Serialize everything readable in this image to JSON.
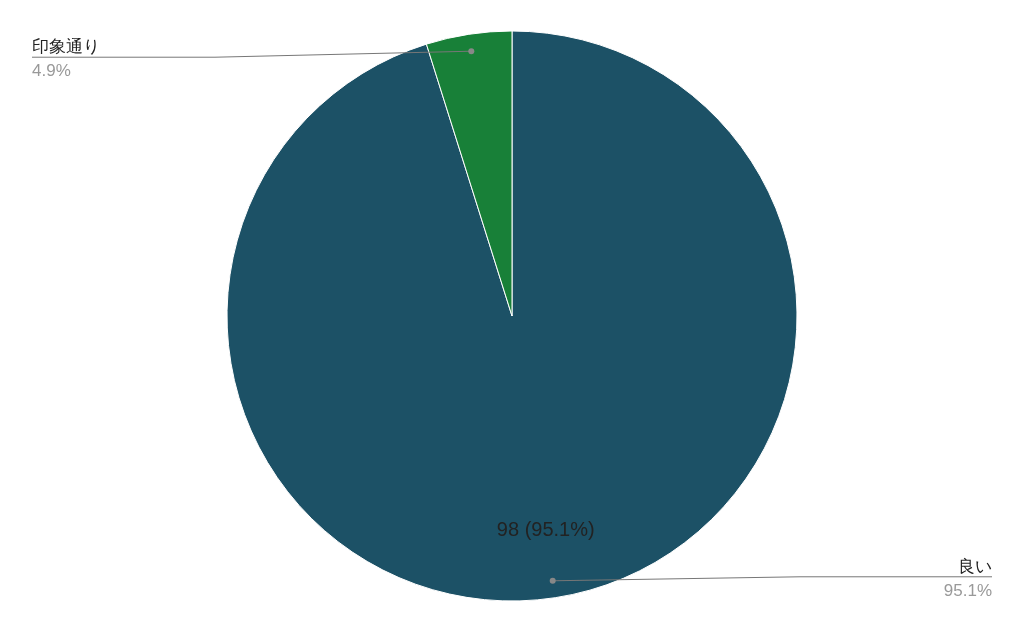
{
  "chart_data": {
    "type": "pie",
    "categories": [
      "良い",
      "印象通り"
    ],
    "values": [
      98,
      5
    ],
    "colors": [
      "#1c5166",
      "#188038"
    ],
    "value_labels": [
      "98 (95.1%)",
      null
    ],
    "annotations": [
      {
        "text": "95.1%",
        "x": "良い"
      },
      {
        "text": "4.9%",
        "x": "印象通り"
      }
    ]
  }
}
